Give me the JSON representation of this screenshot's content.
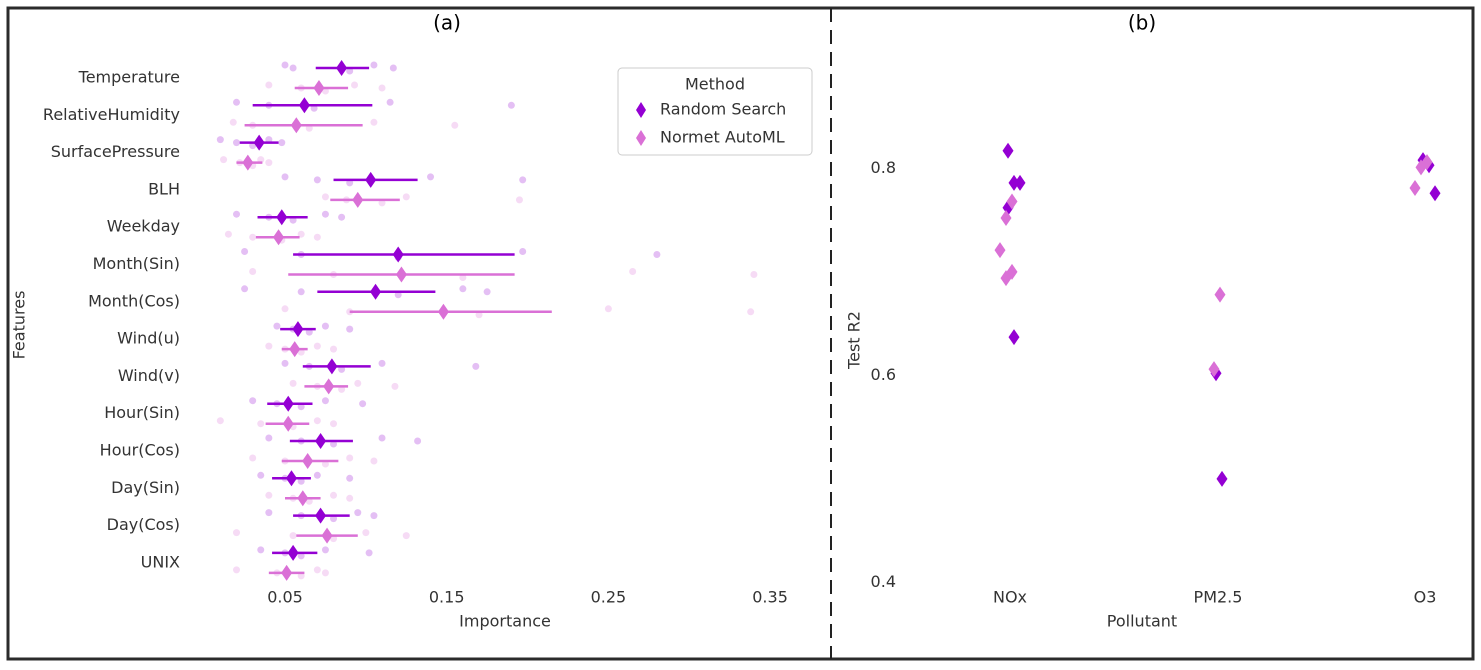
{
  "chart_data": [
    {
      "type": "pointrange",
      "title": "(a)",
      "x_label": "Importance",
      "y_label": "Features",
      "categories": [
        "Temperature",
        "RelativeHumidity",
        "SurfacePressure",
        "BLH",
        "Weekday",
        "Month(Sin)",
        "Month(Cos)",
        "Wind(u)",
        "Wind(v)",
        "Hour(Sin)",
        "Hour(Cos)",
        "Day(Sin)",
        "Day(Cos)",
        "UNIX"
      ],
      "xlim": [
        -0.01,
        0.375
      ],
      "xticks": [
        0.05,
        0.15,
        0.25,
        0.35
      ],
      "legend": {
        "title": "Method",
        "position": "upper right"
      },
      "series": [
        {
          "name": "Random Search",
          "color": "#9400d3",
          "values": [
            0.085,
            0.062,
            0.034,
            0.103,
            0.048,
            0.12,
            0.106,
            0.058,
            0.079,
            0.052,
            0.072,
            0.054,
            0.072,
            0.055
          ],
          "low": [
            0.069,
            0.03,
            0.022,
            0.08,
            0.033,
            0.055,
            0.07,
            0.047,
            0.061,
            0.039,
            0.053,
            0.042,
            0.055,
            0.042
          ],
          "high": [
            0.102,
            0.104,
            0.046,
            0.132,
            0.064,
            0.192,
            0.143,
            0.069,
            0.103,
            0.067,
            0.092,
            0.066,
            0.09,
            0.07
          ],
          "points": [
            [
              0.05,
              0.055,
              0.09,
              0.105,
              0.117
            ],
            [
              0.02,
              0.04,
              0.068,
              0.115,
              0.19
            ],
            [
              0.01,
              0.02,
              0.03,
              0.04,
              0.048
            ],
            [
              0.05,
              0.07,
              0.09,
              0.14,
              0.197
            ],
            [
              0.02,
              0.04,
              0.055,
              0.075,
              0.085
            ],
            [
              0.025,
              0.06,
              0.12,
              0.197,
              0.28
            ],
            [
              0.025,
              0.06,
              0.12,
              0.16,
              0.175
            ],
            [
              0.045,
              0.055,
              0.065,
              0.075,
              0.09
            ],
            [
              0.05,
              0.065,
              0.085,
              0.11,
              0.168
            ],
            [
              0.03,
              0.045,
              0.06,
              0.075,
              0.098
            ],
            [
              0.04,
              0.06,
              0.08,
              0.11,
              0.132
            ],
            [
              0.035,
              0.05,
              0.06,
              0.07,
              0.09
            ],
            [
              0.04,
              0.06,
              0.08,
              0.095,
              0.105
            ],
            [
              0.035,
              0.05,
              0.06,
              0.075,
              0.102
            ]
          ]
        },
        {
          "name": "Normet AutoML",
          "color": "#da70d6",
          "values": [
            0.071,
            0.057,
            0.027,
            0.095,
            0.046,
            0.122,
            0.148,
            0.056,
            0.077,
            0.052,
            0.064,
            0.061,
            0.076,
            0.051
          ],
          "low": [
            0.056,
            0.025,
            0.02,
            0.078,
            0.032,
            0.052,
            0.09,
            0.048,
            0.062,
            0.038,
            0.048,
            0.05,
            0.057,
            0.04
          ],
          "high": [
            0.089,
            0.098,
            0.036,
            0.121,
            0.059,
            0.192,
            0.215,
            0.064,
            0.089,
            0.065,
            0.083,
            0.072,
            0.095,
            0.062
          ],
          "points": [
            [
              0.04,
              0.06,
              0.075,
              0.093,
              0.11
            ],
            [
              0.018,
              0.03,
              0.065,
              0.105,
              0.155
            ],
            [
              0.012,
              0.022,
              0.03,
              0.035,
              0.04
            ],
            [
              0.075,
              0.088,
              0.11,
              0.125,
              0.195
            ],
            [
              0.015,
              0.03,
              0.048,
              0.06,
              0.07
            ],
            [
              0.03,
              0.08,
              0.16,
              0.265,
              0.34
            ],
            [
              0.05,
              0.09,
              0.17,
              0.25,
              0.338
            ],
            [
              0.04,
              0.05,
              0.06,
              0.07,
              0.08
            ],
            [
              0.055,
              0.07,
              0.085,
              0.095,
              0.118
            ],
            [
              0.01,
              0.035,
              0.055,
              0.07,
              0.08
            ],
            [
              0.03,
              0.05,
              0.075,
              0.09,
              0.105
            ],
            [
              0.04,
              0.055,
              0.065,
              0.08,
              0.09
            ],
            [
              0.02,
              0.055,
              0.08,
              0.1,
              0.125
            ],
            [
              0.02,
              0.045,
              0.06,
              0.07,
              0.075
            ]
          ]
        }
      ]
    },
    {
      "type": "strip",
      "title": "(b)",
      "x_label": "Pollutant",
      "y_label": "Test R2",
      "categories": [
        "NOx",
        "PM2.5",
        "O3"
      ],
      "ylim": [
        0.383,
        0.924
      ],
      "yticks": [
        0.4,
        0.6,
        0.8
      ],
      "series": [
        {
          "color": "#9400d3",
          "values": [
            [
              0.817,
              0.786,
              0.786,
              0.762,
              0.637
            ],
            [
              0.602,
              0.5
            ],
            [
              0.808,
              0.803,
              0.776
            ]
          ]
        },
        {
          "color": "#da70d6",
          "values": [
            [
              0.768,
              0.752,
              0.721,
              0.7,
              0.694
            ],
            [
              0.678,
              0.606
            ],
            [
              0.806,
              0.801,
              0.781
            ]
          ]
        }
      ]
    }
  ]
}
